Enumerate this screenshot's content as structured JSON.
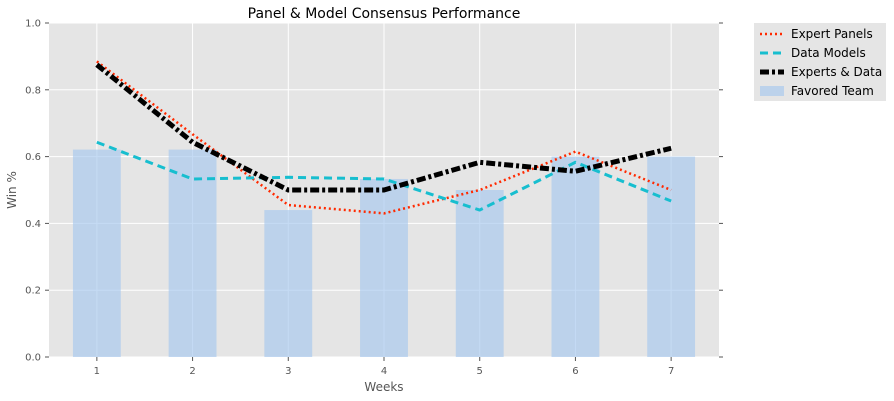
{
  "chart_data": {
    "type": "line",
    "title": "Panel & Model Consensus Performance",
    "xlabel": "Weeks",
    "ylabel": "Win %",
    "x": [
      1,
      2,
      3,
      4,
      5,
      6,
      7
    ],
    "xlim": [
      0.5,
      7.5
    ],
    "ylim": [
      0.0,
      1.0
    ],
    "xticks": [
      "1",
      "2",
      "3",
      "4",
      "5",
      "6",
      "7"
    ],
    "yticks": [
      "0.0",
      "0.2",
      "0.4",
      "0.6",
      "0.8",
      "1.0"
    ],
    "grid": true,
    "background": "#e5e5e5",
    "legend_position": "outside-top-right",
    "series": [
      {
        "name": "Expert Panels",
        "kind": "line",
        "style": "dotted",
        "color": "#ff2a00",
        "values": [
          0.885,
          0.667,
          0.455,
          0.43,
          0.5,
          0.615,
          0.5
        ]
      },
      {
        "name": "Data Models",
        "kind": "line",
        "style": "dashed",
        "color": "#17becf",
        "values": [
          0.643,
          0.533,
          0.538,
          0.533,
          0.44,
          0.583,
          0.467
        ]
      },
      {
        "name": "Experts & Data",
        "kind": "line",
        "style": "dashdot",
        "color": "#000000",
        "values": [
          0.875,
          0.643,
          0.5,
          0.5,
          0.583,
          0.556,
          0.625
        ]
      },
      {
        "name": "Favored Team",
        "kind": "bar",
        "color": "#a6c8ee",
        "values": [
          0.621,
          0.621,
          0.44,
          0.533,
          0.5,
          0.6,
          0.6
        ]
      }
    ]
  }
}
